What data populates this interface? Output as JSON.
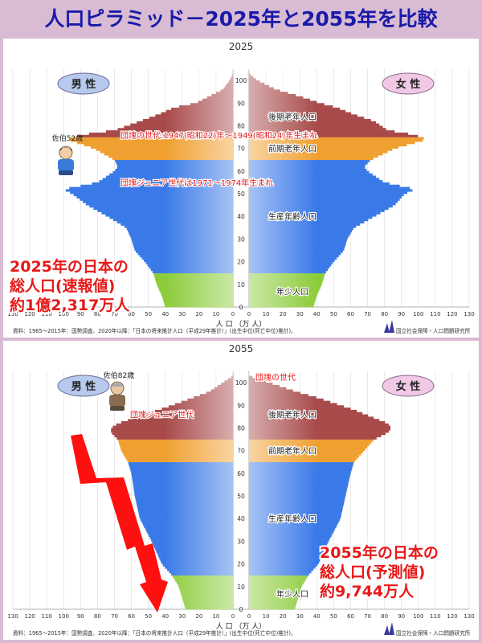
{
  "header": {
    "title": "人口ピラミッド－2025年と2055年を比較"
  },
  "colors": {
    "elderly_late": "#a84a4a",
    "elderly_early": "#f0a030",
    "working": "#3a7ae8",
    "youth": "#8ccc3a",
    "annotation_red": "#e81818",
    "title_blue": "#1a1aa8",
    "big_arrow": "#ff1010"
  },
  "chart_data": [
    {
      "type": "pyramid",
      "title": "2025",
      "left_label": "男 性",
      "right_label": "女 性",
      "xlabel": "人 口 （万 人）",
      "x_ticks": [
        "130",
        "120",
        "110",
        "100",
        "90",
        "80",
        "70",
        "60",
        "50",
        "40",
        "30",
        "20",
        "10",
        "0",
        "0",
        "10",
        "20",
        "30",
        "40",
        "50",
        "60",
        "70",
        "80",
        "90",
        "100",
        "110",
        "120",
        "130"
      ],
      "y_ticks": [
        "0",
        "10",
        "20",
        "30",
        "40",
        "50",
        "60",
        "70",
        "80",
        "90",
        "100"
      ],
      "xlim": [
        0,
        130
      ],
      "ylim": [
        0,
        105
      ],
      "male": [
        [
          0,
          40
        ],
        [
          5,
          42
        ],
        [
          10,
          45
        ],
        [
          15,
          47
        ],
        [
          20,
          52
        ],
        [
          25,
          58
        ],
        [
          30,
          60
        ],
        [
          35,
          63
        ],
        [
          40,
          74
        ],
        [
          45,
          86
        ],
        [
          50,
          95
        ],
        [
          52,
          100
        ],
        [
          55,
          80
        ],
        [
          60,
          70
        ],
        [
          62,
          68
        ],
        [
          65,
          70
        ],
        [
          70,
          82
        ],
        [
          74,
          98
        ],
        [
          76,
          90
        ],
        [
          78,
          70
        ],
        [
          82,
          55
        ],
        [
          85,
          44
        ],
        [
          88,
          35
        ],
        [
          90,
          22
        ],
        [
          93,
          14
        ],
        [
          96,
          6
        ],
        [
          100,
          2
        ],
        [
          103,
          0
        ]
      ],
      "female": [
        [
          0,
          38
        ],
        [
          5,
          40
        ],
        [
          10,
          43
        ],
        [
          15,
          45
        ],
        [
          20,
          50
        ],
        [
          25,
          56
        ],
        [
          30,
          58
        ],
        [
          35,
          62
        ],
        [
          40,
          74
        ],
        [
          45,
          86
        ],
        [
          50,
          92
        ],
        [
          52,
          98
        ],
        [
          55,
          80
        ],
        [
          60,
          70
        ],
        [
          62,
          68
        ],
        [
          65,
          72
        ],
        [
          70,
          86
        ],
        [
          74,
          105
        ],
        [
          76,
          98
        ],
        [
          78,
          82
        ],
        [
          82,
          74
        ],
        [
          85,
          62
        ],
        [
          88,
          52
        ],
        [
          90,
          42
        ],
        [
          93,
          30
        ],
        [
          96,
          16
        ],
        [
          100,
          5
        ],
        [
          103,
          0
        ]
      ],
      "bands": {
        "youth": [
          0,
          14
        ],
        "working": [
          15,
          64
        ],
        "early": [
          65,
          74
        ],
        "late": [
          75,
          105
        ]
      },
      "band_labels": {
        "late": "後期老年人口",
        "early": "前期老年人口",
        "working": "生産年齢人口",
        "youth": "年少人口"
      },
      "annotations": [
        "団塊の世代:1947(昭和22)年～1949(昭和24)年生まれ",
        "団塊ジュニア世代は1971～1974年生まれ"
      ],
      "person_label": "佐伯52歳",
      "total_lines": [
        "2025年の日本の",
        "総人口(速報値)",
        "約1億2,317万人"
      ],
      "source_note": "資料：1965～2015年：国勢調査、2020年以降：「日本の将来推計人口（平成29年推計）」(出生中位(死亡中位)推計)。",
      "institute": "国立社会保障・人口問題研究所"
    },
    {
      "type": "pyramid",
      "title": "2055",
      "left_label": "男 性",
      "right_label": "女 性",
      "xlabel": "人 口 （万 人）",
      "x_ticks": [
        "130",
        "120",
        "110",
        "100",
        "90",
        "80",
        "70",
        "60",
        "50",
        "40",
        "30",
        "20",
        "10",
        "0",
        "0",
        "10",
        "20",
        "30",
        "40",
        "50",
        "60",
        "70",
        "80",
        "90",
        "100",
        "110",
        "120",
        "130"
      ],
      "y_ticks": [
        "0",
        "10",
        "20",
        "30",
        "40",
        "50",
        "60",
        "70",
        "80",
        "90",
        "100"
      ],
      "xlim": [
        0,
        130
      ],
      "ylim": [
        0,
        105
      ],
      "male": [
        [
          0,
          28
        ],
        [
          5,
          30
        ],
        [
          10,
          32
        ],
        [
          15,
          36
        ],
        [
          20,
          42
        ],
        [
          30,
          48
        ],
        [
          40,
          55
        ],
        [
          50,
          58
        ],
        [
          60,
          60
        ],
        [
          65,
          62
        ],
        [
          70,
          66
        ],
        [
          75,
          68
        ],
        [
          78,
          72
        ],
        [
          80,
          72
        ],
        [
          82,
          68
        ],
        [
          85,
          56
        ],
        [
          88,
          44
        ],
        [
          90,
          36
        ],
        [
          93,
          25
        ],
        [
          96,
          14
        ],
        [
          100,
          6
        ],
        [
          103,
          0
        ]
      ],
      "female": [
        [
          0,
          27
        ],
        [
          5,
          29
        ],
        [
          10,
          31
        ],
        [
          15,
          35
        ],
        [
          20,
          41
        ],
        [
          30,
          47
        ],
        [
          40,
          54
        ],
        [
          50,
          57
        ],
        [
          60,
          60
        ],
        [
          65,
          62
        ],
        [
          70,
          68
        ],
        [
          75,
          74
        ],
        [
          78,
          82
        ],
        [
          80,
          84
        ],
        [
          82,
          82
        ],
        [
          85,
          72
        ],
        [
          88,
          62
        ],
        [
          90,
          54
        ],
        [
          93,
          42
        ],
        [
          96,
          28
        ],
        [
          100,
          12
        ],
        [
          103,
          0
        ]
      ],
      "bands": {
        "youth": [
          0,
          14
        ],
        "working": [
          15,
          64
        ],
        "early": [
          65,
          74
        ],
        "late": [
          75,
          105
        ]
      },
      "band_labels": {
        "late": "後期老年人口",
        "early": "前期老年人口",
        "working": "生産年齢人口",
        "youth": "年少人口"
      },
      "annotations": [
        "団塊の世代",
        "団塊ジュニア世代"
      ],
      "person_label": "佐伯82歳",
      "total_lines": [
        "2055年の日本の",
        "総人口(予測値)",
        "約9,744万人"
      ],
      "source_note": "資料：1965～2015年：国勢調査、2020年以降：「日本の将来推計人口（平成29年推計）」(出生中位(死亡中位)推計)。",
      "institute": "国立社会保障・人口問題研究所"
    }
  ]
}
